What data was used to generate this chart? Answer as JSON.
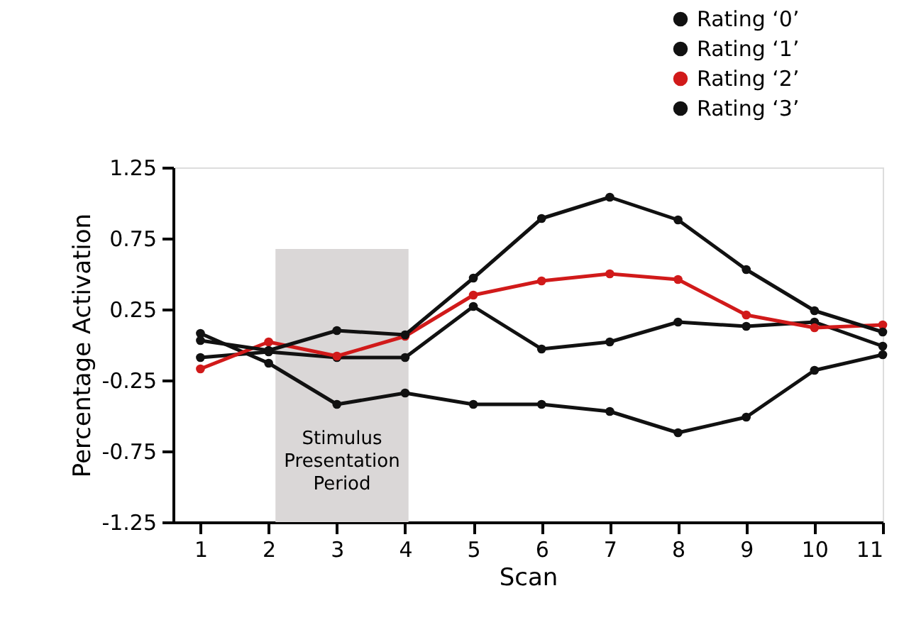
{
  "chart_data": {
    "type": "line",
    "xlabel": "Scan",
    "ylabel": "Percentage Activation",
    "x": [
      1,
      2,
      3,
      4,
      5,
      6,
      7,
      8,
      9,
      10,
      11
    ],
    "series": [
      {
        "name": "Rating ‘0’",
        "color": "#111111",
        "values": [
          0.08,
          -0.13,
          -0.42,
          -0.34,
          -0.42,
          -0.42,
          -0.47,
          -0.62,
          -0.51,
          -0.18,
          -0.07
        ]
      },
      {
        "name": "Rating ‘1’",
        "color": "#111111",
        "values": [
          -0.09,
          -0.05,
          -0.09,
          -0.09,
          0.27,
          -0.03,
          0.02,
          0.16,
          0.13,
          0.16,
          -0.01
        ]
      },
      {
        "name": "Rating ‘2’",
        "color": "#d11a1a",
        "values": [
          -0.17,
          0.02,
          -0.08,
          0.06,
          0.35,
          0.45,
          0.5,
          0.46,
          0.21,
          0.12,
          0.14
        ]
      },
      {
        "name": "Rating ‘3’",
        "color": "#111111",
        "values": [
          0.03,
          -0.04,
          0.1,
          0.07,
          0.47,
          0.89,
          1.04,
          0.88,
          0.53,
          0.24,
          0.09
        ]
      }
    ],
    "xlim": [
      0.6,
      11
    ],
    "xticks": [
      1,
      2,
      3,
      4,
      5,
      6,
      7,
      8,
      9,
      10,
      11
    ],
    "ylim": [
      -1.25,
      1.25
    ],
    "yticks": [
      -1.25,
      -0.75,
      -0.25,
      0.25,
      0.75,
      1.25
    ],
    "bands": [
      {
        "axis": "x",
        "from": 2.1,
        "to": 4.05,
        "label": "Stimulus Presentation Period",
        "color": "#dad7d7"
      }
    ],
    "grid": false,
    "legend": "top right",
    "marker": "circle",
    "line_style": "solid"
  }
}
